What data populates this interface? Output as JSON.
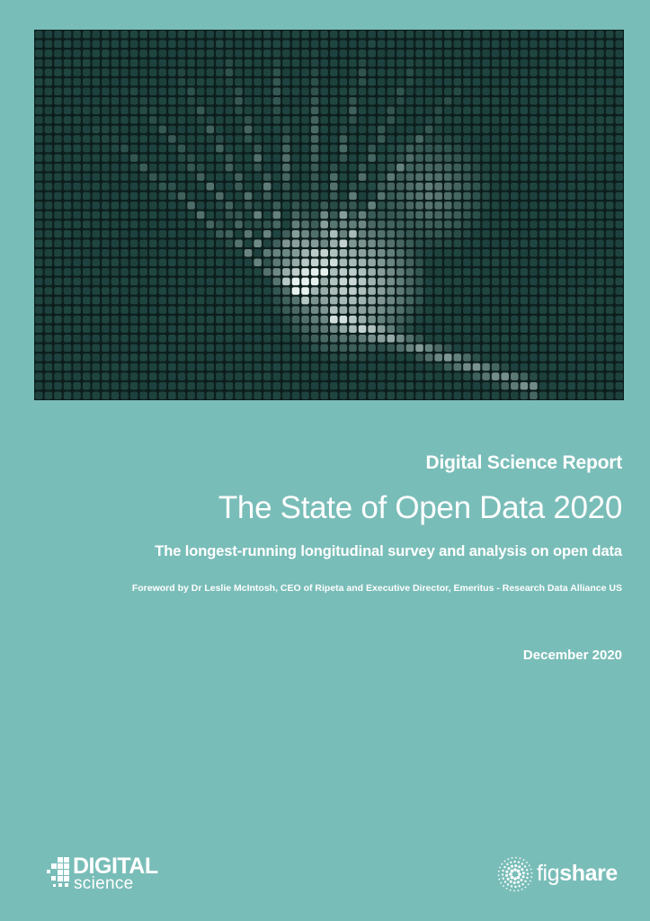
{
  "cover": {
    "image": "abstract-fiber-optic-droplet-grid",
    "colors": {
      "background": "#79bdb8",
      "tile_dark": "#1a3a37",
      "tile_light": "#e8f2ef"
    }
  },
  "report": {
    "series": "Digital Science Report",
    "title": "The State of Open Data 2020",
    "subtitle": "The longest-running longitudinal survey and analysis on open data",
    "foreword": "Foreword by Dr Leslie McIntosh, CEO of Ripeta and Executive Director, Emeritus - Research Data Alliance US",
    "date": "December 2020"
  },
  "logos": {
    "digital_science": {
      "word1": "DIGITAL",
      "word2": "science"
    },
    "figshare": {
      "word_a": "fig",
      "word_b": "share"
    }
  }
}
